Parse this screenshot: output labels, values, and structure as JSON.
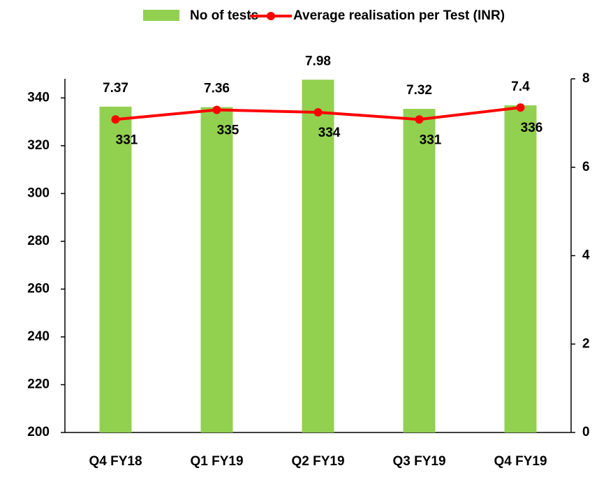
{
  "chart_data": {
    "type": "bar_line",
    "categories": [
      "Q4 FY18",
      "Q1 FY19",
      "Q2 FY19",
      "Q3 FY19",
      "Q4 FY19"
    ],
    "series": [
      {
        "name": "No of tests",
        "color": "#92d050",
        "axis": "y2",
        "kind": "bar",
        "values": [
          7.37,
          7.36,
          7.98,
          7.32,
          7.4
        ]
      },
      {
        "name": "Average realisation per Test (INR)",
        "color": "#ff0000",
        "axis": "y",
        "kind": "line",
        "values": [
          331,
          335,
          334,
          331,
          336
        ]
      }
    ],
    "ylim": [
      200,
      348
    ],
    "yticks": [
      200,
      220,
      240,
      260,
      280,
      300,
      320,
      340
    ],
    "y2lim": [
      0,
      8
    ],
    "y2ticks": [
      0,
      2,
      4,
      6,
      8
    ]
  }
}
